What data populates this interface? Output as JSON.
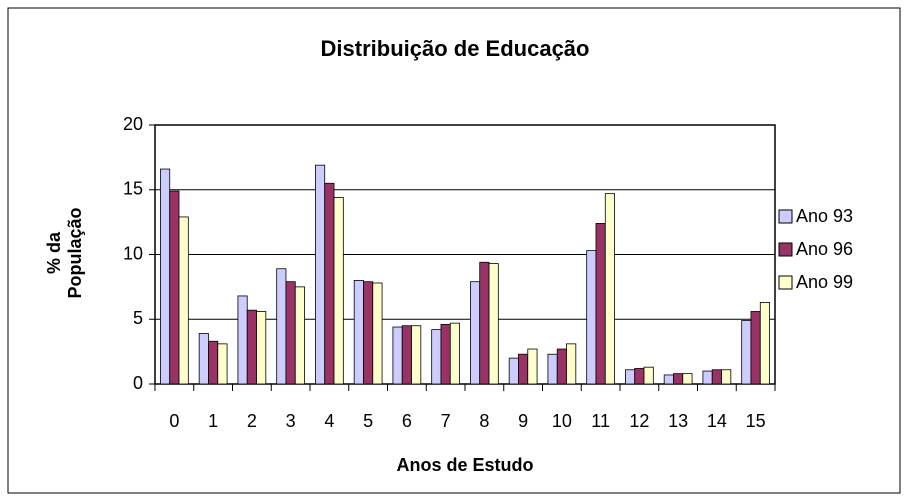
{
  "chart_data": {
    "type": "bar",
    "title": "Distribuição de Educação",
    "xlabel": "Anos de Estudo",
    "ylabel": "% da População",
    "categories": [
      "0",
      "1",
      "2",
      "3",
      "4",
      "5",
      "6",
      "7",
      "8",
      "9",
      "10",
      "11",
      "12",
      "13",
      "14",
      "15"
    ],
    "series": [
      {
        "name": "Ano 93",
        "color": "#ccccff",
        "values": [
          16.6,
          3.9,
          6.8,
          8.9,
          16.9,
          8.0,
          4.4,
          4.2,
          7.9,
          2.0,
          2.3,
          10.3,
          1.1,
          0.7,
          1.0,
          4.9
        ]
      },
      {
        "name": "Ano 96",
        "color": "#993366",
        "values": [
          14.9,
          3.3,
          5.7,
          7.9,
          15.5,
          7.9,
          4.5,
          4.6,
          9.4,
          2.3,
          2.7,
          12.4,
          1.2,
          0.8,
          1.1,
          5.6
        ]
      },
      {
        "name": "Ano 99",
        "color": "#ffffcc",
        "values": [
          12.9,
          3.1,
          5.6,
          7.5,
          14.4,
          7.8,
          4.5,
          4.7,
          9.3,
          2.7,
          3.1,
          14.7,
          1.3,
          0.8,
          1.1,
          6.3
        ]
      }
    ],
    "ylim": [
      0,
      20
    ],
    "yticks": [
      0,
      5,
      10,
      15,
      20
    ],
    "grid": true,
    "legend": "right"
  }
}
